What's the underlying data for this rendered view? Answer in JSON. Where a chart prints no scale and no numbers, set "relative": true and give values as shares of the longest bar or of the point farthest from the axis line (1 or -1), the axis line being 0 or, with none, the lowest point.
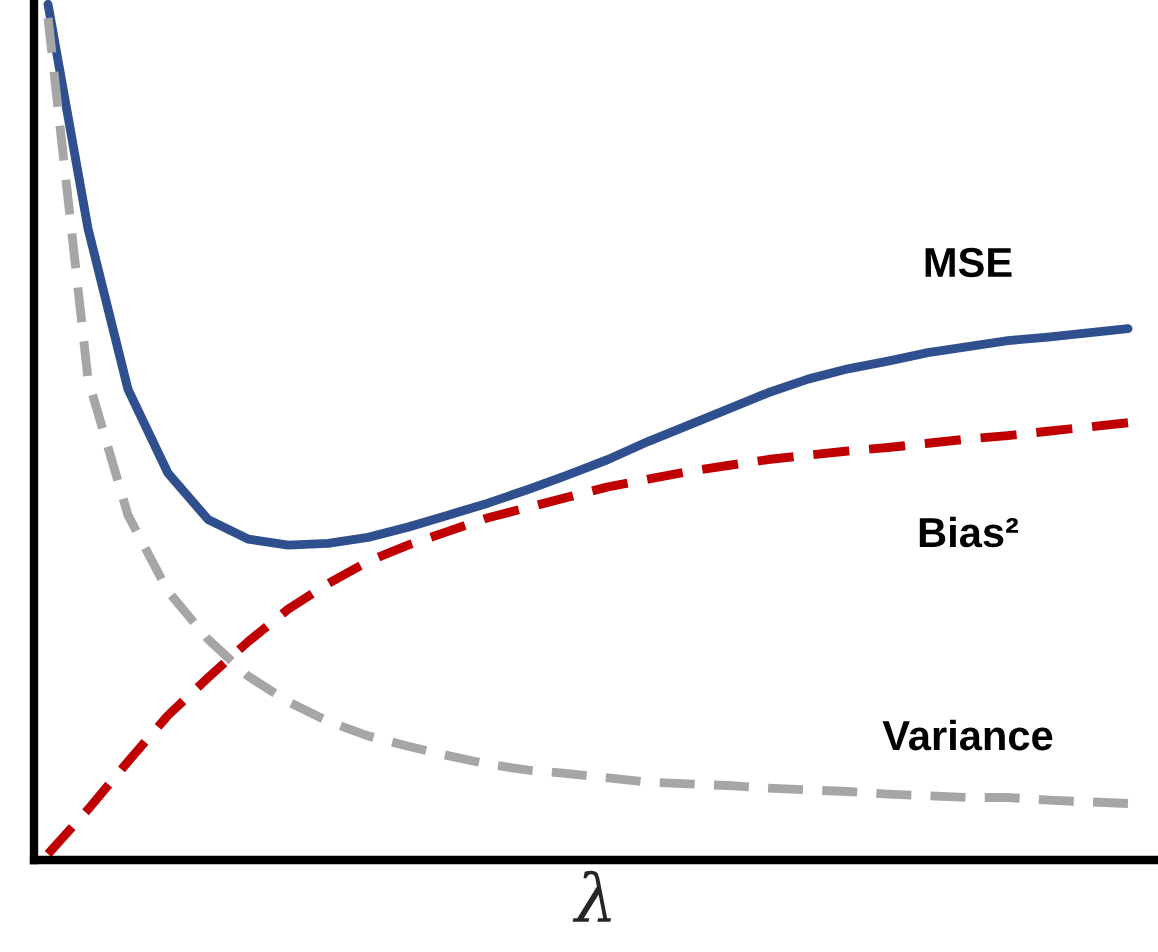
{
  "chart_data": {
    "type": "line",
    "xlabel": "λ",
    "relative": true,
    "categories": [
      null,
      null,
      null,
      null,
      null,
      null,
      null,
      null,
      null,
      null,
      null,
      null,
      null,
      null,
      null,
      null,
      null,
      null,
      null,
      null,
      null,
      null,
      null,
      null,
      null,
      null,
      null,
      null
    ],
    "series": [
      {
        "name": "MSE",
        "color": "#2f4f8f",
        "line_style": "solid",
        "values": [
          1.0,
          0.738,
          0.55,
          0.452,
          0.398,
          0.375,
          0.368,
          0.37,
          0.377,
          0.389,
          0.403,
          0.417,
          0.433,
          0.45,
          0.468,
          0.489,
          0.508,
          0.527,
          0.546,
          0.562,
          0.574,
          0.583,
          0.593,
          0.6,
          0.607,
          0.611,
          0.616,
          0.621
        ]
      },
      {
        "name": "Bias²",
        "color": "#c00000",
        "line_style": "dashed",
        "values": [
          0.007,
          0.059,
          0.115,
          0.169,
          0.213,
          0.255,
          0.293,
          0.323,
          0.349,
          0.368,
          0.384,
          0.4,
          0.412,
          0.424,
          0.436,
          0.445,
          0.454,
          0.461,
          0.468,
          0.473,
          0.478,
          0.482,
          0.487,
          0.492,
          0.496,
          0.501,
          0.506,
          0.511
        ]
      },
      {
        "name": "Variance",
        "color": "#a6a6a6",
        "line_style": "dashed",
        "values": [
          0.984,
          0.562,
          0.403,
          0.314,
          0.258,
          0.215,
          0.185,
          0.162,
          0.145,
          0.133,
          0.122,
          0.112,
          0.105,
          0.101,
          0.096,
          0.091,
          0.089,
          0.087,
          0.084,
          0.082,
          0.08,
          0.077,
          0.075,
          0.073,
          0.073,
          0.07,
          0.068,
          0.066
        ]
      }
    ]
  }
}
